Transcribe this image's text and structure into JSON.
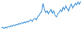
{
  "chart_data": {
    "type": "line",
    "x": [
      1,
      2,
      3,
      4,
      5,
      6,
      7,
      8,
      9,
      10,
      11,
      12,
      13,
      14,
      15,
      16,
      17,
      18,
      19,
      20,
      21,
      22,
      23,
      24,
      25,
      26,
      27,
      28,
      29,
      30,
      31,
      32,
      33,
      34,
      35,
      36,
      37,
      38,
      39,
      40,
      41,
      42,
      43,
      44,
      45,
      46,
      47,
      48,
      49,
      50,
      51,
      52,
      53,
      54,
      55,
      56,
      57,
      58,
      59,
      60
    ],
    "values": [
      5,
      6,
      4,
      6,
      5,
      7,
      6,
      8,
      7,
      9,
      8,
      10,
      9,
      11,
      10,
      12,
      11,
      13,
      12,
      14,
      13,
      15,
      16,
      14,
      17,
      18,
      16,
      20,
      22,
      25,
      27,
      38,
      30,
      26,
      28,
      24,
      27,
      30,
      25,
      28,
      22,
      20,
      24,
      26,
      29,
      27,
      33,
      30,
      35,
      31,
      28,
      34,
      37,
      32,
      35,
      38,
      36,
      40,
      37,
      41
    ],
    "xlim": [
      1,
      60
    ],
    "ylim": [
      4,
      41
    ],
    "color": "#3a8fd8",
    "tick_labels": false,
    "grid": false
  }
}
